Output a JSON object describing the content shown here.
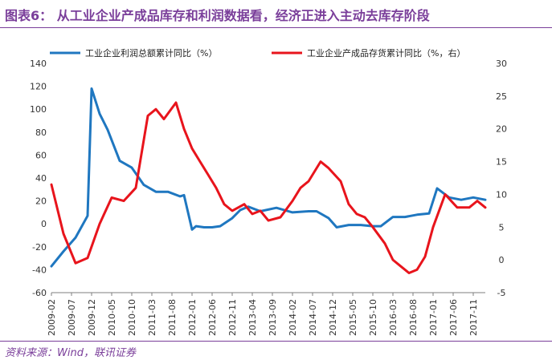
{
  "figure": {
    "title": "图表6：   从工业企业产成品库存和利润数据看，经济正进入主动去库存阶段",
    "source": "资料来源：Wind，联讯证券"
  },
  "chart_data": {
    "type": "line",
    "title": "",
    "xlabel": "",
    "ylabel": "",
    "y_left_range": [
      -60,
      140
    ],
    "y_left_ticks": [
      -60,
      -40,
      -20,
      0,
      20,
      40,
      60,
      80,
      100,
      120,
      140
    ],
    "y_right_range": [
      -5,
      30
    ],
    "y_right_ticks": [
      -5,
      0,
      5,
      10,
      15,
      20,
      25,
      30
    ],
    "x_range": [
      "2009-02",
      "2018-02"
    ],
    "x_ticks": [
      "2009-02",
      "2009-07",
      "2009-12",
      "2010-05",
      "2010-10",
      "2011-03",
      "2011-08",
      "2012-01",
      "2012-06",
      "2012-11",
      "2013-04",
      "2013-09",
      "2014-02",
      "2014-07",
      "2014-12",
      "2015-05",
      "2015-10",
      "2016-03",
      "2016-08",
      "2017-01",
      "2017-06",
      "2017-11"
    ],
    "grid": false,
    "legend_position": "top",
    "series": [
      {
        "name": "工业企业利润总额累计同比（%）",
        "axis": "left",
        "color": "#1f77c0",
        "points": [
          [
            "2009-02",
            -37
          ],
          [
            "2009-05",
            -24
          ],
          [
            "2009-08",
            -12
          ],
          [
            "2009-11",
            7
          ],
          [
            "2009-12",
            118
          ],
          [
            "2010-02",
            96
          ],
          [
            "2010-04",
            82
          ],
          [
            "2010-07",
            55
          ],
          [
            "2010-10",
            49
          ],
          [
            "2011-01",
            34
          ],
          [
            "2011-04",
            28
          ],
          [
            "2011-07",
            28
          ],
          [
            "2011-10",
            24
          ],
          [
            "2011-11",
            25
          ],
          [
            "2012-01",
            -5
          ],
          [
            "2012-02",
            -2
          ],
          [
            "2012-04",
            -3
          ],
          [
            "2012-06",
            -3
          ],
          [
            "2012-08",
            -2
          ],
          [
            "2012-11",
            5
          ],
          [
            "2013-01",
            12
          ],
          [
            "2013-03",
            15
          ],
          [
            "2013-06",
            11
          ],
          [
            "2013-10",
            14
          ],
          [
            "2014-02",
            10
          ],
          [
            "2014-06",
            11
          ],
          [
            "2014-08",
            11
          ],
          [
            "2014-11",
            5
          ],
          [
            "2015-01",
            -3
          ],
          [
            "2015-04",
            -1
          ],
          [
            "2015-07",
            -1
          ],
          [
            "2015-10",
            -2
          ],
          [
            "2015-12",
            -2
          ],
          [
            "2016-03",
            6
          ],
          [
            "2016-06",
            6
          ],
          [
            "2016-09",
            8
          ],
          [
            "2016-12",
            9
          ],
          [
            "2017-02",
            31
          ],
          [
            "2017-05",
            23
          ],
          [
            "2017-08",
            21
          ],
          [
            "2017-11",
            23
          ],
          [
            "2018-02",
            21
          ]
        ]
      },
      {
        "name": "工业企业产成品存货累计同比（%，右）",
        "axis": "right",
        "color": "#e8141c",
        "points": [
          [
            "2009-02",
            11.5
          ],
          [
            "2009-05",
            4
          ],
          [
            "2009-08",
            -0.5
          ],
          [
            "2009-11",
            0.3
          ],
          [
            "2010-02",
            5.5
          ],
          [
            "2010-05",
            9.5
          ],
          [
            "2010-08",
            9
          ],
          [
            "2010-11",
            11
          ],
          [
            "2011-02",
            22
          ],
          [
            "2011-04",
            23
          ],
          [
            "2011-06",
            21.5
          ],
          [
            "2011-09",
            24
          ],
          [
            "2011-11",
            20
          ],
          [
            "2012-01",
            17
          ],
          [
            "2012-03",
            15
          ],
          [
            "2012-05",
            13
          ],
          [
            "2012-07",
            11
          ],
          [
            "2012-09",
            8.5
          ],
          [
            "2012-11",
            7.5
          ],
          [
            "2013-02",
            8.5
          ],
          [
            "2013-04",
            7
          ],
          [
            "2013-06",
            7.5
          ],
          [
            "2013-08",
            6
          ],
          [
            "2013-11",
            6.5
          ],
          [
            "2014-02",
            9
          ],
          [
            "2014-04",
            11
          ],
          [
            "2014-06",
            12
          ],
          [
            "2014-09",
            15
          ],
          [
            "2014-11",
            14
          ],
          [
            "2015-02",
            12
          ],
          [
            "2015-04",
            8.5
          ],
          [
            "2015-06",
            7
          ],
          [
            "2015-08",
            6.5
          ],
          [
            "2015-10",
            5
          ],
          [
            "2016-01",
            2.5
          ],
          [
            "2016-03",
            0
          ],
          [
            "2016-05",
            -1
          ],
          [
            "2016-07",
            -2
          ],
          [
            "2016-09",
            -1.5
          ],
          [
            "2016-11",
            0.5
          ],
          [
            "2017-01",
            5
          ],
          [
            "2017-04",
            10
          ],
          [
            "2017-07",
            8
          ],
          [
            "2017-10",
            8
          ],
          [
            "2017-12",
            9
          ],
          [
            "2018-02",
            8
          ]
        ]
      }
    ]
  }
}
